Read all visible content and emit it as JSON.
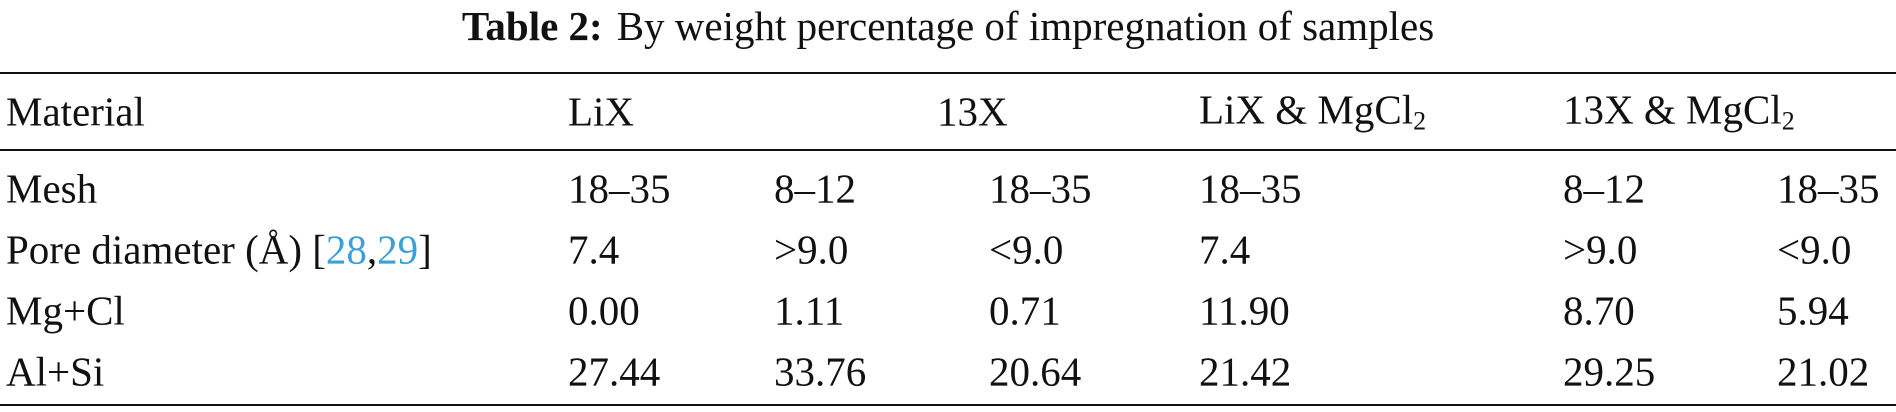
{
  "title": {
    "label": "Table 2:",
    "text": "By weight percentage of impregnation of samples"
  },
  "table": {
    "header": [
      {
        "text": "Material"
      },
      {
        "text": "LiX"
      },
      {
        "text": "13X"
      },
      {
        "text": "LiX & MgCl",
        "subscript": "2"
      },
      {
        "text": "13X & MgCl",
        "subscript": "2"
      }
    ],
    "rows": [
      [
        [
          "Mesh"
        ],
        "18–35",
        "8–12",
        "18–35",
        "18–35",
        "8–12",
        "18–35"
      ],
      [
        [
          "Pore diameter (Å) [",
          {
            "ref": "28"
          },
          ",",
          {
            "ref": "29"
          },
          "]"
        ],
        "7.4",
        ">9.0",
        "<9.0",
        "7.4",
        ">9.0",
        "<9.0"
      ],
      [
        [
          "Mg+Cl"
        ],
        "0.00",
        "1.11",
        "0.71",
        "11.90",
        "8.70",
        "5.94"
      ],
      [
        [
          "Al+Si"
        ],
        "27.44",
        "33.76",
        "20.64",
        "21.42",
        "29.25",
        "21.02"
      ]
    ]
  }
}
